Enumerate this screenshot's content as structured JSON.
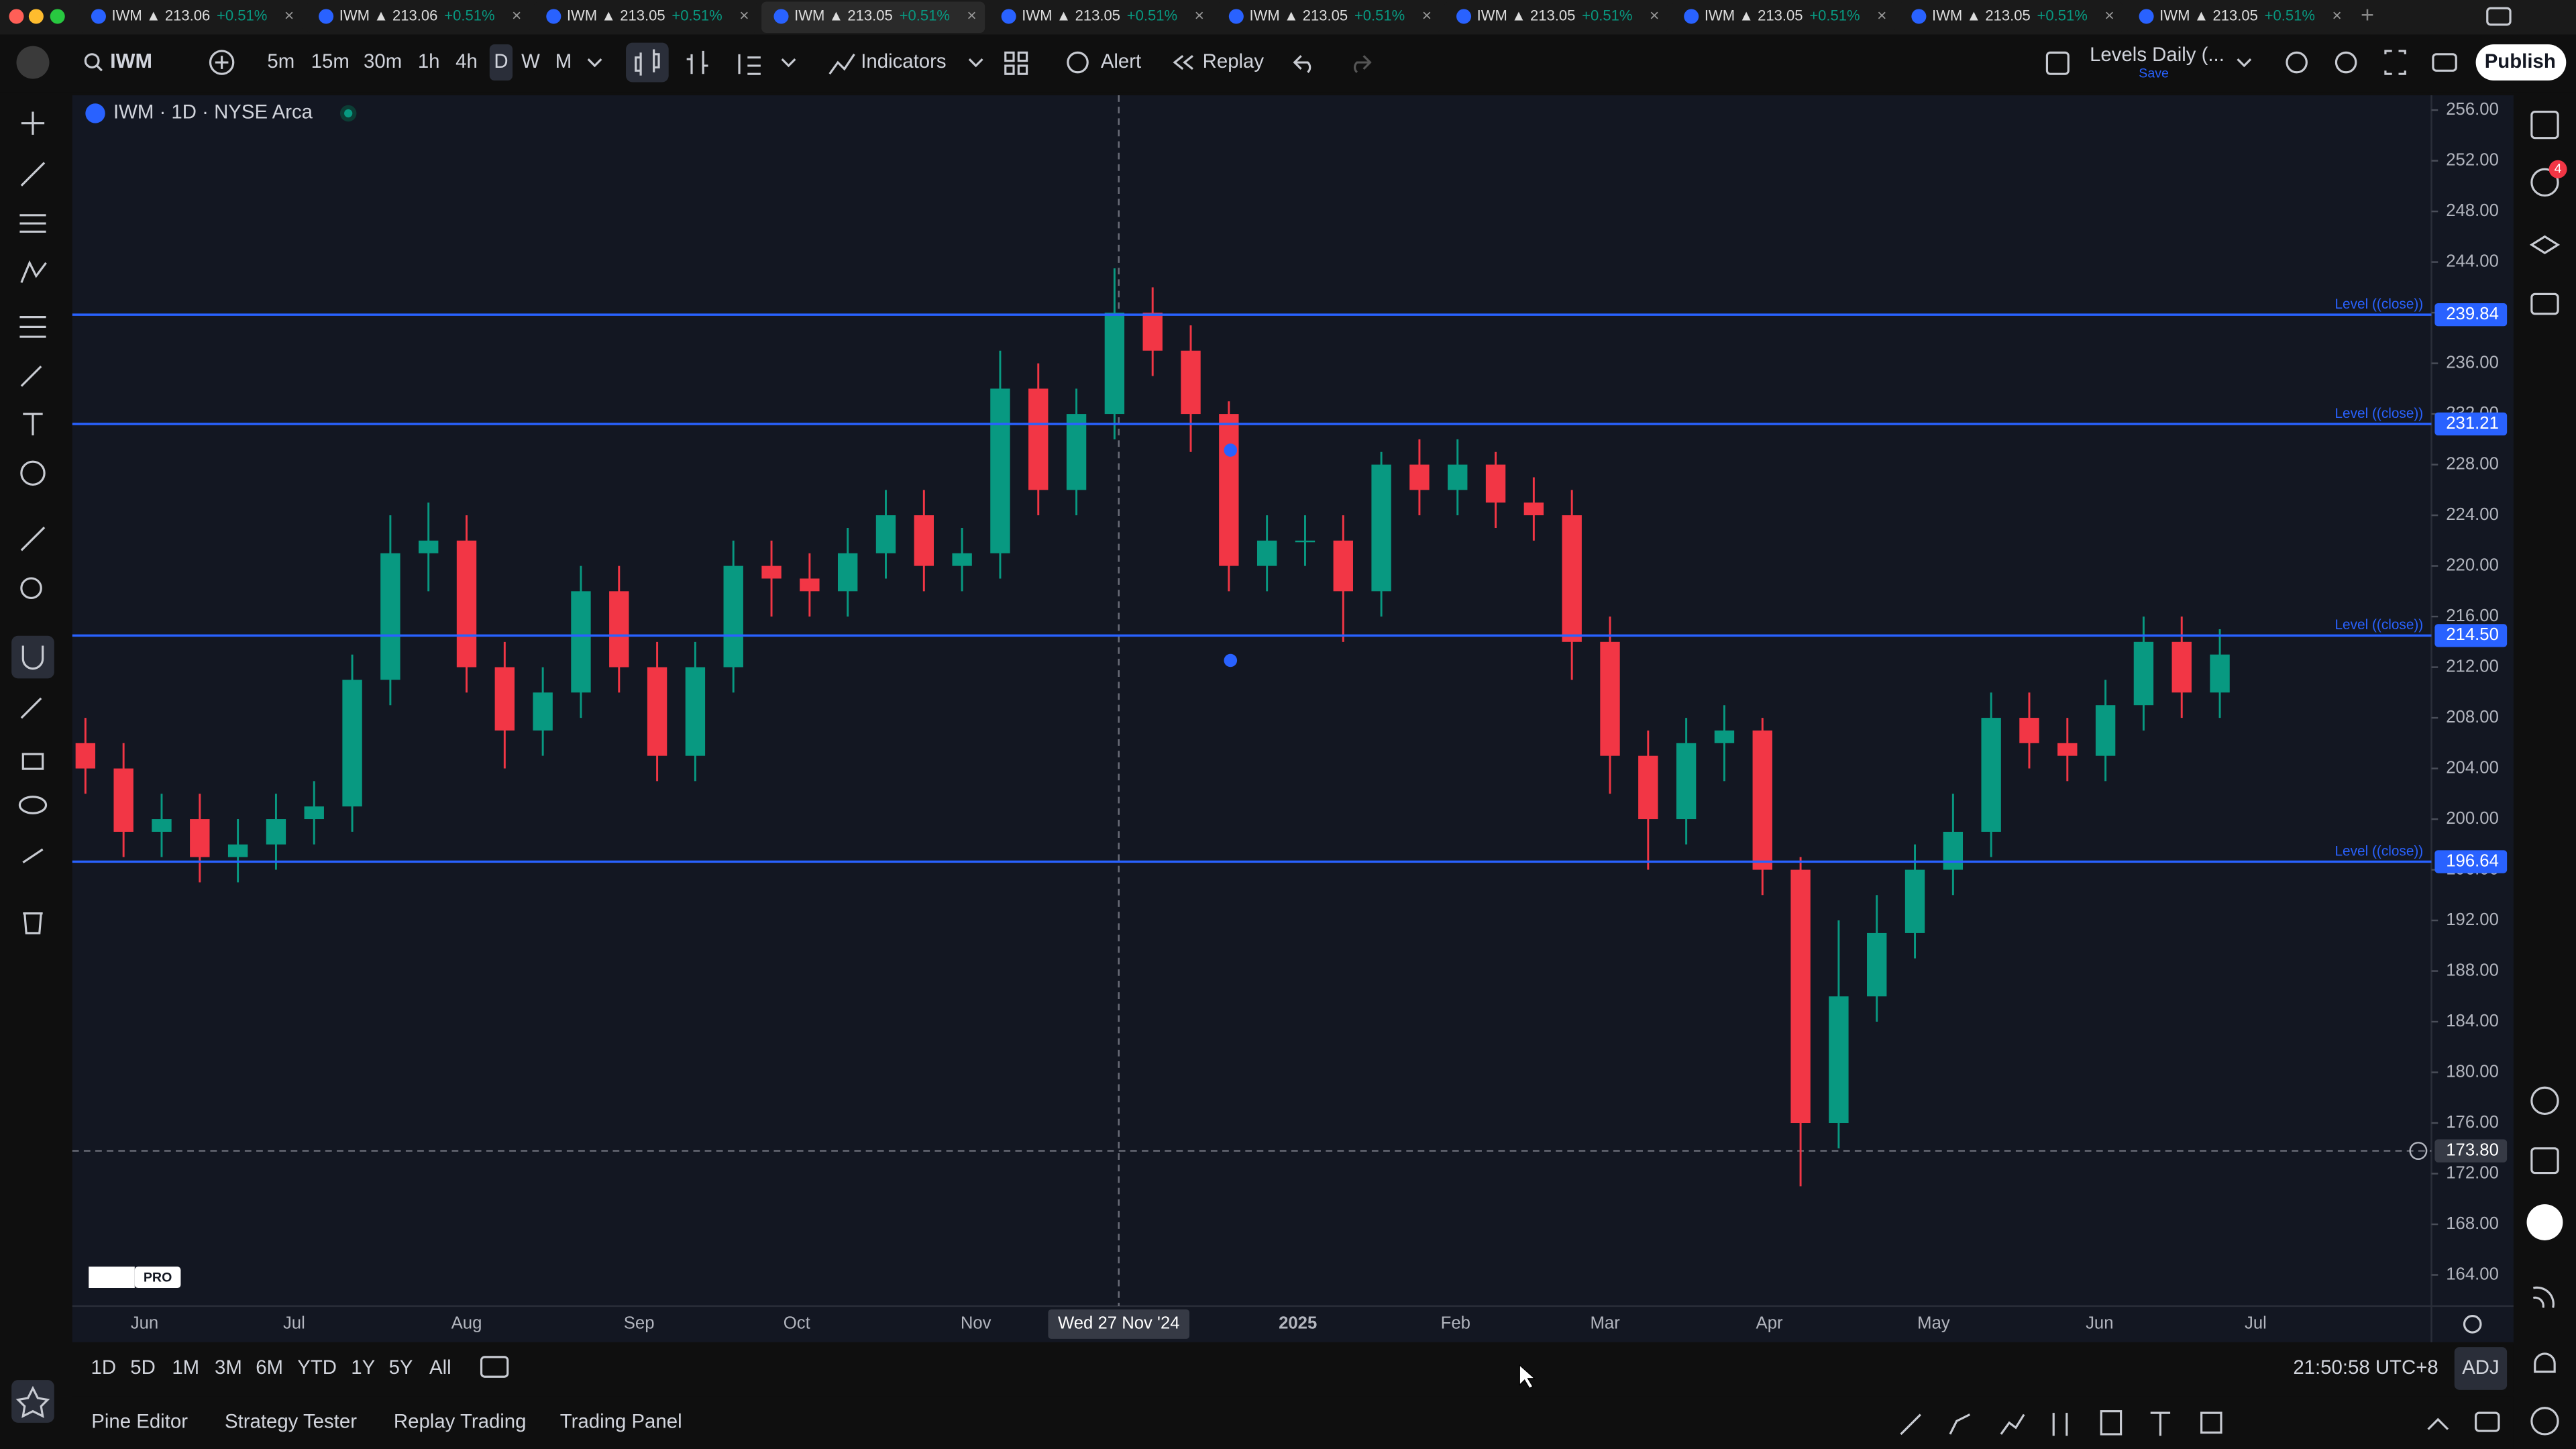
{
  "tabs": [
    {
      "label": "IWM ▲ 213.06",
      "change": "+0.51%"
    },
    {
      "label": "IWM ▲ 213.06",
      "change": "+0.51%"
    },
    {
      "label": "IWM ▲ 213.05",
      "change": "+0.51%"
    },
    {
      "label": "IWM ▲ 213.05",
      "change": "+0.51%"
    },
    {
      "label": "IWM ▲ 213.05",
      "change": "+0.51%"
    },
    {
      "label": "IWM ▲ 213.05",
      "change": "+0.51%"
    },
    {
      "label": "IWM ▲ 213.05",
      "change": "+0.51%"
    },
    {
      "label": "IWM ▲ 213.05",
      "change": "+0.51%"
    },
    {
      "label": "IWM ▲ 213.05",
      "change": "+0.51%"
    },
    {
      "label": "IWM ▲ 213.05",
      "change": "+0.51%"
    }
  ],
  "toolbar": {
    "symbol": "IWM",
    "intervals": [
      "5m",
      "15m",
      "30m",
      "1h",
      "4h",
      "D",
      "W",
      "M"
    ],
    "indicators": "Indicators",
    "alert": "Alert",
    "replay": "Replay",
    "layout": "Levels Daily (...",
    "save": "Save",
    "publish": "Publish"
  },
  "chart_data": {
    "type": "candlestick",
    "title": "IWM · 1D · NYSE Arca",
    "logo": "PRO",
    "categories": [
      null,
      null,
      null,
      null,
      null,
      null,
      null,
      null,
      null,
      null,
      null,
      null,
      null,
      null,
      null,
      null,
      null,
      null,
      null,
      null,
      null,
      null,
      null,
      null,
      null,
      null,
      null,
      null,
      null,
      null,
      null,
      null,
      null,
      null,
      null,
      null,
      null,
      null,
      null,
      null,
      null,
      null,
      null,
      null,
      null,
      null,
      null,
      null,
      null,
      null,
      null,
      null,
      null,
      null,
      null,
      null,
      null
    ],
    "open": [
      206,
      204,
      199,
      200,
      197,
      198,
      200,
      201,
      211,
      221,
      222,
      212,
      207,
      210,
      218,
      212,
      205,
      212,
      220,
      219,
      218,
      221,
      224,
      220,
      221,
      234,
      226,
      232,
      240,
      237,
      232,
      220,
      222,
      222,
      218,
      228,
      226,
      228,
      225,
      224,
      214,
      205,
      200,
      206,
      207,
      196,
      176,
      186,
      191,
      196,
      199,
      208,
      206,
      205,
      209,
      214,
      210
    ],
    "high": [
      208,
      206,
      202,
      202,
      200,
      202,
      203,
      213,
      224,
      225,
      224,
      214,
      212,
      220,
      220,
      214,
      214,
      222,
      222,
      221,
      223,
      226,
      226,
      223,
      237,
      236,
      234,
      243.5,
      242,
      239,
      233,
      224,
      224,
      224,
      229,
      230,
      230,
      229,
      227,
      226,
      216,
      207,
      208,
      209,
      208,
      197,
      192,
      194,
      198,
      202,
      210,
      210,
      208,
      211,
      216,
      216,
      215
    ],
    "low": [
      202,
      197,
      197,
      195,
      195,
      196,
      198,
      199,
      209,
      218,
      210,
      204,
      205,
      208,
      210,
      203,
      203,
      210,
      216,
      216,
      216,
      219,
      218,
      218,
      219,
      224,
      224,
      230,
      235,
      229,
      218,
      218,
      220,
      214,
      216,
      224,
      224,
      223,
      222,
      211,
      202,
      196,
      198,
      203,
      194,
      171,
      174,
      184,
      189,
      194,
      197,
      204,
      203,
      203,
      207,
      208,
      208
    ],
    "close": [
      204,
      199,
      200,
      197,
      198,
      200,
      201,
      211,
      221,
      222,
      212,
      207,
      210,
      218,
      212,
      205,
      212,
      220,
      219,
      218,
      221,
      224,
      220,
      221,
      234,
      226,
      232,
      240,
      237,
      232,
      220,
      222,
      222,
      218,
      228,
      226,
      228,
      225,
      224,
      214,
      205,
      200,
      206,
      207,
      196,
      176,
      186,
      191,
      196,
      199,
      208,
      206,
      205,
      209,
      214,
      210,
      213
    ],
    "up_color": "#089981",
    "down_color": "#f23645",
    "ylim": [
      161.54,
      257.17
    ],
    "yticks": [
      {
        "value": 256,
        "label": "256.00"
      },
      {
        "value": 252,
        "label": "252.00"
      },
      {
        "value": 248,
        "label": "248.00"
      },
      {
        "value": 244,
        "label": "244.00"
      },
      {
        "value": 240,
        "label": "240.00"
      },
      {
        "value": 236,
        "label": "236.00"
      },
      {
        "value": 232,
        "label": "232.00"
      },
      {
        "value": 228,
        "label": "228.00"
      },
      {
        "value": 224,
        "label": "224.00"
      },
      {
        "value": 220,
        "label": "220.00"
      },
      {
        "value": 216,
        "label": "216.00"
      },
      {
        "value": 212,
        "label": "212.00"
      },
      {
        "value": 208,
        "label": "208.00"
      },
      {
        "value": 204,
        "label": "204.00"
      },
      {
        "value": 200,
        "label": "200.00"
      },
      {
        "value": 196,
        "label": "196.00"
      },
      {
        "value": 192,
        "label": "192.00"
      },
      {
        "value": 188,
        "label": "188.00"
      },
      {
        "value": 184,
        "label": "184.00"
      },
      {
        "value": 180,
        "label": "180.00"
      },
      {
        "value": 176,
        "label": "176.00"
      },
      {
        "value": 172,
        "label": "172.00"
      },
      {
        "value": 168,
        "label": "168.00"
      },
      {
        "value": 164,
        "label": "164.00"
      }
    ],
    "levels": [
      {
        "name": "Level ((close))",
        "value": 239.84,
        "value_label": "239.84"
      },
      {
        "name": "Level ((close))",
        "value": 231.21,
        "value_label": "231.21"
      },
      {
        "name": "Level ((close))",
        "value": 214.5,
        "value_label": "214.50"
      },
      {
        "name": "Level ((close))",
        "value": 196.64,
        "value_label": "196.64"
      }
    ],
    "level_color": "#2962ff",
    "time_axis": [
      "Jun",
      "Jul",
      "Aug",
      "Sep",
      "Oct",
      "Nov",
      "2025",
      "Feb",
      "Mar",
      "Apr",
      "May",
      "Jun",
      "Jul"
    ],
    "crosshair": {
      "date_label": "Wed 27 Nov '24",
      "price": 173.8,
      "price_label": "173.80"
    }
  },
  "range_bar": {
    "ranges": [
      "1D",
      "5D",
      "1M",
      "3M",
      "6M",
      "YTD",
      "1Y",
      "5Y",
      "All"
    ],
    "clock": "21:50:58 UTC+8",
    "adj": "ADJ"
  },
  "bottom_tabs": [
    "Pine Editor",
    "Strategy Tester",
    "Replay Trading",
    "Trading Panel"
  ],
  "sidebar": {
    "badge": "4"
  }
}
